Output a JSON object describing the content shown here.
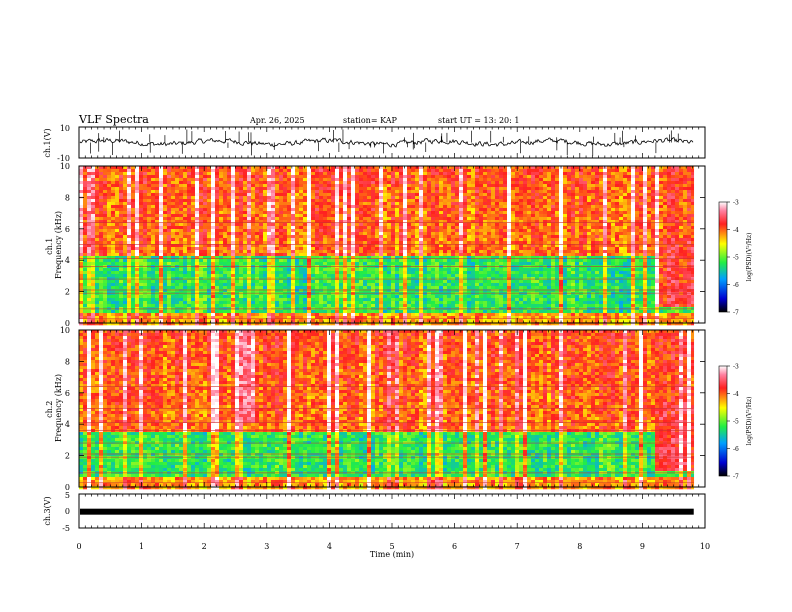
{
  "header": {
    "title": "VLF Spectra",
    "date": "Apr. 26, 2025",
    "station": "station= KAP",
    "start_ut": "start UT =  13: 20: 1"
  },
  "colors": {
    "spectrogram_low": "#0000d0",
    "spectrogram_mid": "#22ee44",
    "spectrogram_high": "#ff2020",
    "spectrogram_peak": "#ffffff",
    "trace": "#000000"
  },
  "chart_data": [
    {
      "type": "line",
      "name": "ch1-waveform",
      "ylabel": "ch.1(V)",
      "ylim": [
        -10,
        10
      ],
      "yticks": [
        "10",
        "-10"
      ],
      "xlim": [
        0,
        10
      ],
      "x_data_end": 9.82,
      "baseline": 0,
      "amplitude_typical": 3,
      "grid": false
    },
    {
      "type": "heatmap",
      "name": "ch1-spectrogram",
      "ylabel": "ch.1\nFrequency (kHz)",
      "ylim": [
        0,
        10
      ],
      "yticks": [
        "0",
        "2",
        "4",
        "6",
        "8",
        "10"
      ],
      "xlim": [
        0,
        10
      ],
      "x_data_end": 9.82,
      "quiet_band_khz": [
        0.6,
        4.2
      ],
      "colorbar": {
        "label": "log(PSD)(V²/Hz)",
        "range": [
          -7,
          -3
        ],
        "ticks": [
          "-3",
          "-4",
          "-5",
          "-6",
          "-7"
        ]
      }
    },
    {
      "type": "heatmap",
      "name": "ch2-spectrogram",
      "ylabel": "ch.2\nFrequency (kHz)",
      "ylim": [
        0,
        10
      ],
      "yticks": [
        "0",
        "2",
        "4",
        "6",
        "8",
        "10"
      ],
      "xlim": [
        0,
        10
      ],
      "x_data_end": 9.82,
      "quiet_band_khz": [
        0.6,
        3.5
      ],
      "colorbar": {
        "label": "log(PSD)(V²/Hz)",
        "range": [
          -7,
          -3
        ],
        "ticks": [
          "-3",
          "-4",
          "-5",
          "-6",
          "-7"
        ]
      }
    },
    {
      "type": "line",
      "name": "ch3-waveform",
      "ylabel": "ch.3(V)",
      "ylim": [
        -5,
        5
      ],
      "yticks": [
        "5",
        "0",
        "-5"
      ],
      "xlim": [
        0,
        10
      ],
      "x_data_end": 9.82,
      "baseline": -0.2,
      "grid": false
    }
  ],
  "xaxis": {
    "label": "Time (min)",
    "ticks": [
      "0",
      "1",
      "2",
      "3",
      "4",
      "5",
      "6",
      "7",
      "8",
      "9",
      "10"
    ]
  }
}
